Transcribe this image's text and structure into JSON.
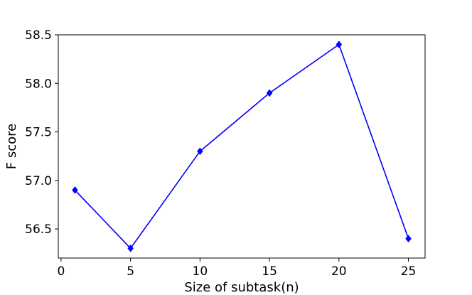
{
  "chart_data": {
    "type": "line",
    "title": "",
    "xlabel": "Size of subtask(n)",
    "ylabel": "F score",
    "x": [
      1,
      5,
      10,
      15,
      20,
      25
    ],
    "series": [
      {
        "values": [
          56.9,
          56.3,
          57.3,
          57.9,
          58.4,
          56.4
        ],
        "color": "#0000ff",
        "marker": "diamond"
      }
    ],
    "xlim": [
      -0.2,
      26.2
    ],
    "ylim": [
      56.2,
      58.5
    ],
    "xticks": [
      0,
      5,
      10,
      15,
      20,
      25
    ],
    "xtick_labels": [
      "0",
      "5",
      "10",
      "15",
      "20",
      "25"
    ],
    "yticks": [
      56.5,
      57.0,
      57.5,
      58.0,
      58.5
    ],
    "ytick_labels": [
      "56.5",
      "57.0",
      "57.5",
      "58.0",
      "58.5"
    ],
    "grid": false,
    "legend": false
  }
}
